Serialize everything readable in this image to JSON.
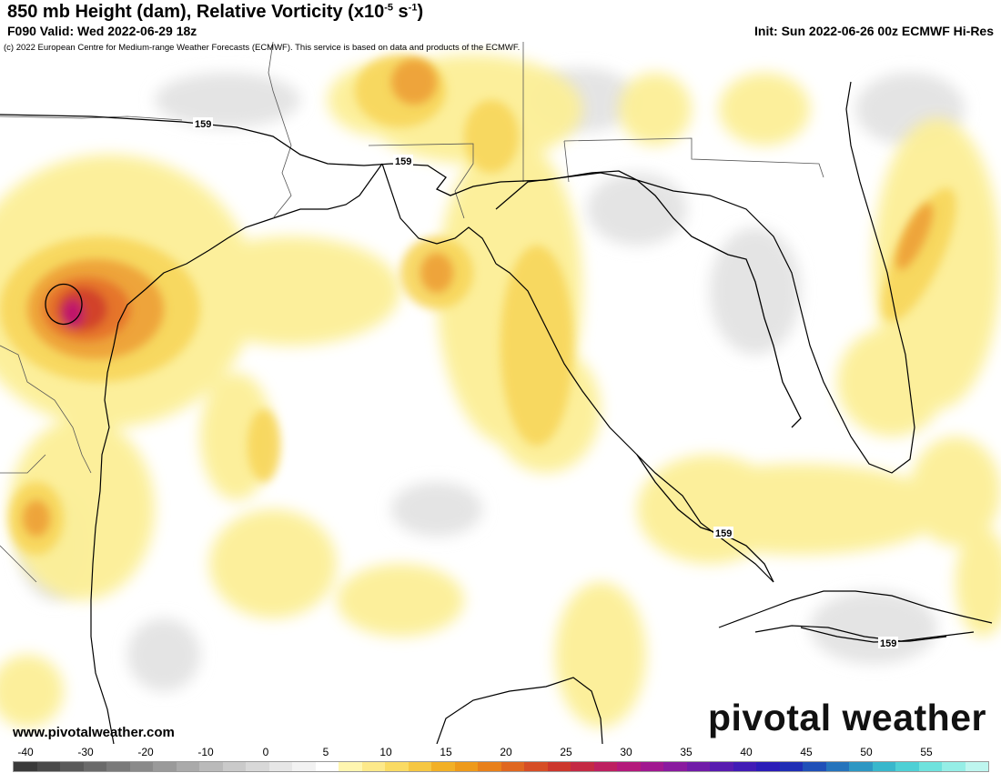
{
  "header": {
    "title_main": "850 mb Height (dam), Relative Vorticity (x10",
    "title_exp1": "-5",
    "title_mid": " s",
    "title_exp2": "-1",
    "title_end": ")",
    "valid": "F090 Valid: Wed 2022-06-29 18z",
    "init": "Init: Sun 2022-06-26 00z ECMWF Hi-Res",
    "copyright": "(c) 2022 European Centre for Medium-range Weather Forecasts (ECMWF). This service is based on data and products of the ECMWF."
  },
  "map": {
    "region": "Gulf of Mexico",
    "contour_labels": [
      "159",
      "159",
      "159",
      "159"
    ],
    "colors": {
      "ocean": "#ffffff",
      "light_yellow": "#fdf19a",
      "yellow": "#f8dc5a",
      "orange": "#f2b33a",
      "dark_orange": "#e67e22",
      "red": "#d4382b",
      "magenta": "#c5176b",
      "gray_light": "#ececec",
      "gray": "#d6d6d6",
      "border": "#000000"
    }
  },
  "footer": {
    "website": "www.pivotalweather.com",
    "brand": "pivotal weather"
  },
  "colorbar": {
    "ticks": [
      "-40",
      "-30",
      "-20",
      "-10",
      "0",
      "5",
      "10",
      "15",
      "20",
      "25",
      "30",
      "35",
      "40",
      "45",
      "50",
      "55"
    ],
    "colors": [
      "#3a3a3a",
      "#4a4a4a",
      "#5a5a5a",
      "#6a6a6a",
      "#7a7a7a",
      "#8a8a8a",
      "#9a9a9a",
      "#aaaaaa",
      "#bababa",
      "#cacaca",
      "#d8d8d8",
      "#e6e6e6",
      "#f2f2f2",
      "#ffffff",
      "#fff6b0",
      "#fde98a",
      "#fadb63",
      "#f6c742",
      "#f2b026",
      "#ee9a1a",
      "#e8801a",
      "#e06720",
      "#d64e26",
      "#cc372c",
      "#c42a44",
      "#bd2060",
      "#b4197b",
      "#a11890",
      "#8a1a9f",
      "#711ba8",
      "#581bb0",
      "#411bb6",
      "#2b1cb8",
      "#1f2eb5",
      "#1f50b8",
      "#2574bc",
      "#2d97c3",
      "#38b7cc",
      "#4ed0d5",
      "#6fe2dd",
      "#95eee6",
      "#bef6ef"
    ]
  }
}
